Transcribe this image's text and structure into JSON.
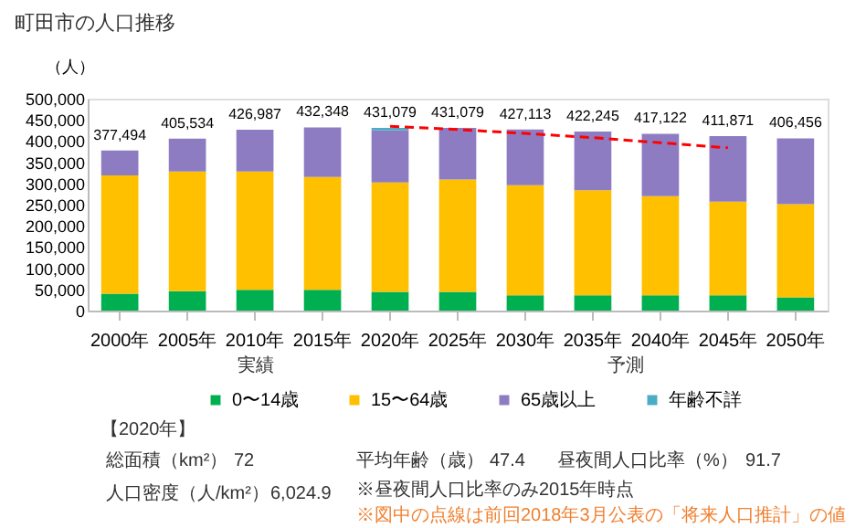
{
  "chart_data": {
    "type": "bar",
    "title": "町田市の人口推移",
    "ylabel": "（人）",
    "stacked": true,
    "categories": [
      "2000年",
      "2005年",
      "2010年",
      "2015年",
      "2020年",
      "2025年",
      "2030年",
      "2035年",
      "2040年",
      "2045年",
      "2050年"
    ],
    "series": [
      {
        "name": "0〜14歳",
        "color": "#00b050",
        "values": [
          40000,
          46000,
          49000,
          49000,
          44000,
          44000,
          36000,
          36000,
          36000,
          36000,
          31000
        ]
      },
      {
        "name": "15〜64歳",
        "color": "#ffc000",
        "values": [
          279000,
          282000,
          279000,
          266000,
          258000,
          265000,
          260000,
          248000,
          234000,
          221000,
          220000
        ]
      },
      {
        "name": "65歳以上",
        "color": "#8e7cc3",
        "values": [
          58494,
          77534,
          98987,
          117348,
          123079,
          122079,
          131113,
          138245,
          147122,
          154871,
          155456
        ]
      },
      {
        "name": "年齢不詳",
        "color": "#4bacc6",
        "values": [
          0,
          0,
          0,
          0,
          6000,
          0,
          0,
          0,
          0,
          0,
          0
        ]
      },
      {
        "type": "line",
        "color": "#ff0000",
        "line_style": "dashed",
        "values": [
          null,
          null,
          null,
          null,
          435000,
          427000,
          418000,
          408000,
          396000,
          384000,
          null
        ]
      }
    ],
    "totals": [
      "377,494",
      "405,534",
      "426,987",
      "432,348",
      "431,079",
      "431,079",
      "427,113",
      "422,245",
      "417,122",
      "411,871",
      "406,456"
    ],
    "ylim": [
      0,
      500000
    ],
    "yticks": [
      {
        "value": 0,
        "label": "0"
      },
      {
        "value": 50000,
        "label": "50,000"
      },
      {
        "value": 100000,
        "label": "100,000"
      },
      {
        "value": 150000,
        "label": "150,000"
      },
      {
        "value": 200000,
        "label": "200,000"
      },
      {
        "value": 250000,
        "label": "250,000"
      },
      {
        "value": 300000,
        "label": "300,000"
      },
      {
        "value": 350000,
        "label": "350,000"
      },
      {
        "value": 400000,
        "label": "400,000"
      },
      {
        "value": 450000,
        "label": "450,000"
      },
      {
        "value": 500000,
        "label": "500,000"
      }
    ],
    "grid": false,
    "legend": "bottom",
    "annotations": [
      "実績",
      "予測",
      "【2020年】",
      "総面積（km²）",
      "72",
      "平均年齢（歳）",
      "47.4",
      "昼夜間人口比率（%）",
      "91.7",
      "人口密度（人/km²）",
      "6,024.9",
      "※昼夜間人口比率のみ2015年時点",
      "※図中の点線は前回2018年3月公表の「将来人口推計」の値"
    ]
  }
}
